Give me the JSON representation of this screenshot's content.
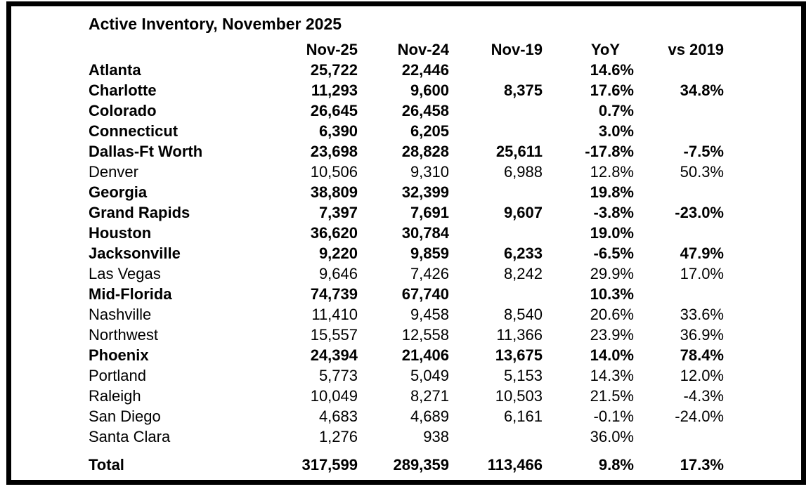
{
  "title": "Active Inventory, November 2025",
  "colors": {
    "text": "#000000",
    "background": "#ffffff",
    "border": "#000000"
  },
  "chart_data": {
    "type": "table",
    "title": "Active Inventory, November 2025",
    "columns": [
      "",
      "Nov-25",
      "Nov-24",
      "Nov-19",
      "YoY",
      "vs 2019"
    ],
    "rows": [
      {
        "label": "Atlanta",
        "values": [
          "25,722",
          "22,446",
          "",
          "14.6%",
          ""
        ],
        "bold": true
      },
      {
        "label": "Charlotte",
        "values": [
          "11,293",
          "9,600",
          "8,375",
          "17.6%",
          "34.8%"
        ],
        "bold": true
      },
      {
        "label": "Colorado",
        "values": [
          "26,645",
          "26,458",
          "",
          "0.7%",
          ""
        ],
        "bold": true
      },
      {
        "label": "Connecticut",
        "values": [
          "6,390",
          "6,205",
          "",
          "3.0%",
          ""
        ],
        "bold": true
      },
      {
        "label": "Dallas-Ft Worth",
        "values": [
          "23,698",
          "28,828",
          "25,611",
          "-17.8%",
          "-7.5%"
        ],
        "bold": true
      },
      {
        "label": "Denver",
        "values": [
          "10,506",
          "9,310",
          "6,988",
          "12.8%",
          "50.3%"
        ],
        "bold": false
      },
      {
        "label": "Georgia",
        "values": [
          "38,809",
          "32,399",
          "",
          "19.8%",
          ""
        ],
        "bold": true
      },
      {
        "label": "Grand Rapids",
        "values": [
          "7,397",
          "7,691",
          "9,607",
          "-3.8%",
          "-23.0%"
        ],
        "bold": true
      },
      {
        "label": "Houston",
        "values": [
          "36,620",
          "30,784",
          "",
          "19.0%",
          ""
        ],
        "bold": true
      },
      {
        "label": "Jacksonville",
        "values": [
          "9,220",
          "9,859",
          "6,233",
          "-6.5%",
          "47.9%"
        ],
        "bold": true
      },
      {
        "label": "Las Vegas",
        "values": [
          "9,646",
          "7,426",
          "8,242",
          "29.9%",
          "17.0%"
        ],
        "bold": false
      },
      {
        "label": "Mid-Florida",
        "values": [
          "74,739",
          "67,740",
          "",
          "10.3%",
          ""
        ],
        "bold": true
      },
      {
        "label": "Nashville",
        "values": [
          "11,410",
          "9,458",
          "8,540",
          "20.6%",
          "33.6%"
        ],
        "bold": false
      },
      {
        "label": "Northwest",
        "values": [
          "15,557",
          "12,558",
          "11,366",
          "23.9%",
          "36.9%"
        ],
        "bold": false
      },
      {
        "label": "Phoenix",
        "values": [
          "24,394",
          "21,406",
          "13,675",
          "14.0%",
          "78.4%"
        ],
        "bold": true
      },
      {
        "label": "Portland",
        "values": [
          "5,773",
          "5,049",
          "5,153",
          "14.3%",
          "12.0%"
        ],
        "bold": false
      },
      {
        "label": "Raleigh",
        "values": [
          "10,049",
          "8,271",
          "10,503",
          "21.5%",
          "-4.3%"
        ],
        "bold": false
      },
      {
        "label": "San Diego",
        "values": [
          "4,683",
          "4,689",
          "6,161",
          "-0.1%",
          "-24.0%"
        ],
        "bold": false
      },
      {
        "label": "Santa Clara",
        "values": [
          "1,276",
          "938",
          "",
          "36.0%",
          ""
        ],
        "bold": false
      }
    ],
    "total": {
      "label": "Total",
      "values": [
        "317,599",
        "289,359",
        "113,466",
        "9.8%",
        "17.3%"
      ],
      "bold": true
    }
  }
}
